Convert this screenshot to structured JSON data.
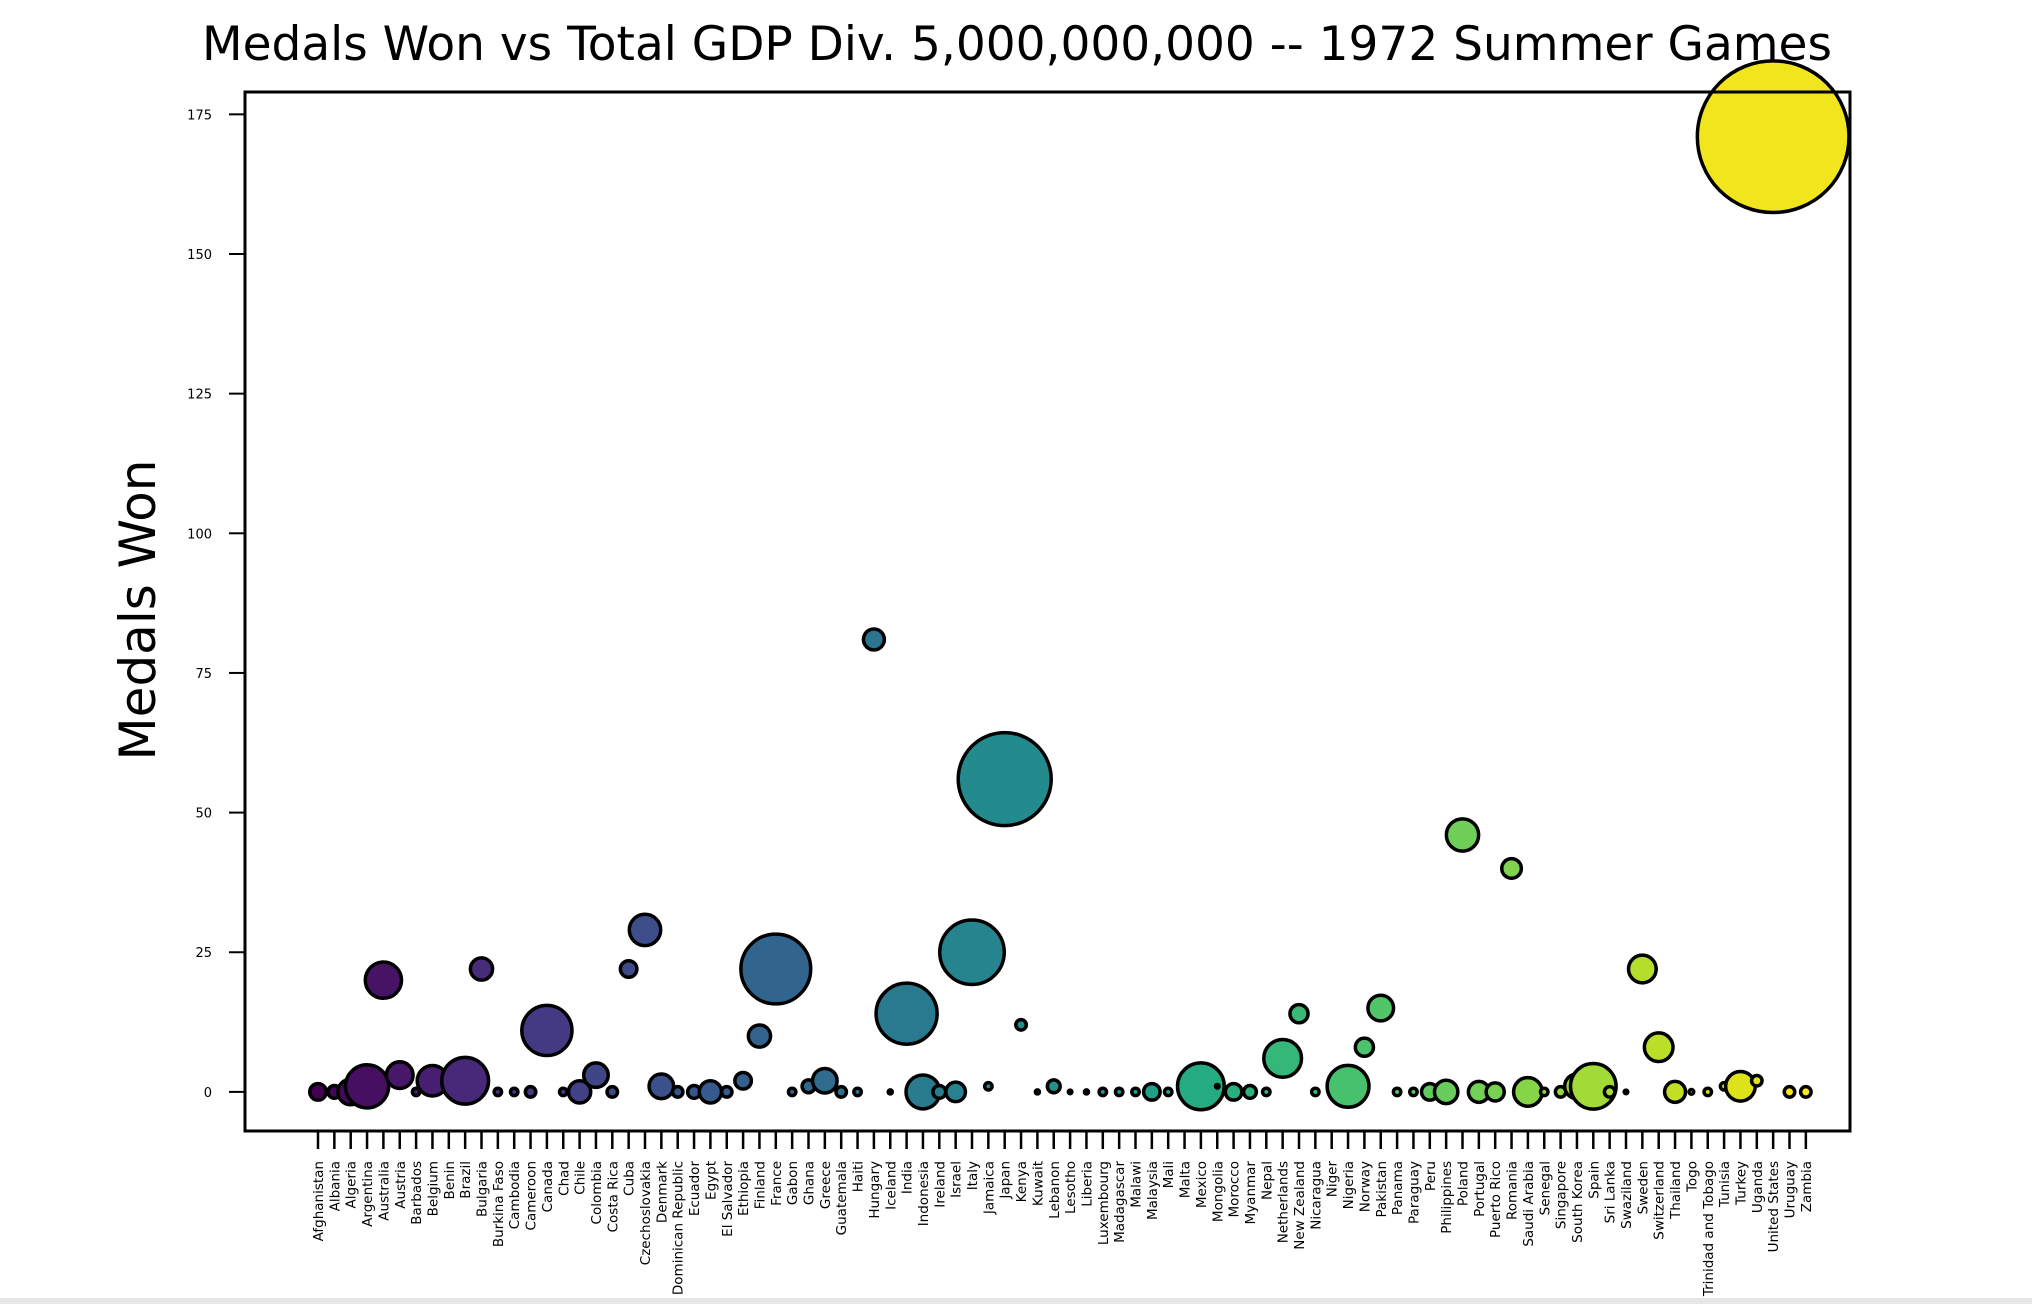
{
  "chart_data": {
    "type": "scatter",
    "title": "Medals Won vs Total GDP Div. 5,000,000,000 -- 1972 Summer Games",
    "xlabel": "",
    "ylabel": "Medals Won",
    "ylim": [
      -7,
      179
    ],
    "yticks": [
      0,
      25,
      50,
      75,
      100,
      125,
      150,
      175
    ],
    "grid": false,
    "legend": "none",
    "colormap": "viridis",
    "points": [
      {
        "country": "Afghanistan",
        "medals": 0,
        "size": 0.5,
        "color": "#440154"
      },
      {
        "country": "Albania",
        "medals": 0,
        "size": 0.3,
        "color": "#450559"
      },
      {
        "country": "Algeria",
        "medals": 0,
        "size": 1.2,
        "color": "#460a5d"
      },
      {
        "country": "Argentina",
        "medals": 1,
        "size": 3.4,
        "color": "#470f62"
      },
      {
        "country": "Australia",
        "medals": 20,
        "size": 2.4,
        "color": "#471365"
      },
      {
        "country": "Austria",
        "medals": 3,
        "size": 1.3,
        "color": "#481769"
      },
      {
        "country": "Barbados",
        "medals": 0,
        "size": 0.1,
        "color": "#481b6d"
      },
      {
        "country": "Belgium",
        "medals": 2,
        "size": 1.7,
        "color": "#481f70"
      },
      {
        "country": "Benin",
        "medals": 0,
        "size": 0.1,
        "color": "#482374"
      },
      {
        "country": "Brazil",
        "medals": 2,
        "size": 4.0,
        "color": "#482878"
      },
      {
        "country": "Bulgaria",
        "medals": 22,
        "size": 0.9,
        "color": "#472c7a"
      },
      {
        "country": "Burkina Faso",
        "medals": 0,
        "size": 0.1,
        "color": "#472f7d"
      },
      {
        "country": "Cambodia",
        "medals": 0,
        "size": 0.1,
        "color": "#46327e"
      },
      {
        "country": "Cameroon",
        "medals": 0,
        "size": 0.2,
        "color": "#453781"
      },
      {
        "country": "Canada",
        "medals": 11,
        "size": 4.6,
        "color": "#443a83"
      },
      {
        "country": "Chad",
        "medals": 0,
        "size": 0.1,
        "color": "#433e85"
      },
      {
        "country": "Chile",
        "medals": 0,
        "size": 0.9,
        "color": "#424086"
      },
      {
        "country": "Colombia",
        "medals": 3,
        "size": 1.1,
        "color": "#404588"
      },
      {
        "country": "Costa Rica",
        "medals": 0,
        "size": 0.2,
        "color": "#3f4889"
      },
      {
        "country": "Cuba",
        "medals": 22,
        "size": 0.5,
        "color": "#3e4989"
      },
      {
        "country": "Czechoslovakia",
        "medals": 29,
        "size": 1.8,
        "color": "#3d4e8a"
      },
      {
        "country": "Denmark",
        "medals": 1,
        "size": 1.1,
        "color": "#3b518b"
      },
      {
        "country": "Dominican Republic",
        "medals": 0,
        "size": 0.2,
        "color": "#3a548c"
      },
      {
        "country": "Ecuador",
        "medals": 0,
        "size": 0.3,
        "color": "#39568c"
      },
      {
        "country": "Egypt",
        "medals": 0,
        "size": 0.9,
        "color": "#375a8c"
      },
      {
        "country": "El Salvador",
        "medals": 0,
        "size": 0.2,
        "color": "#365d8d"
      },
      {
        "country": "Ethiopia",
        "medals": 2,
        "size": 0.5,
        "color": "#355f8d"
      },
      {
        "country": "Finland",
        "medals": 10,
        "size": 0.9,
        "color": "#33638d"
      },
      {
        "country": "France",
        "medals": 22,
        "size": 8.9,
        "color": "#32658e"
      },
      {
        "country": "Gabon",
        "medals": 0,
        "size": 0.1,
        "color": "#31688e"
      },
      {
        "country": "Ghana",
        "medals": 1,
        "size": 0.3,
        "color": "#306a8e"
      },
      {
        "country": "Greece",
        "medals": 2,
        "size": 1.1,
        "color": "#2f6c8e"
      },
      {
        "country": "Guatemala",
        "medals": 0,
        "size": 0.2,
        "color": "#2d708e"
      },
      {
        "country": "Haiti",
        "medals": 0,
        "size": 0.1,
        "color": "#2c728e"
      },
      {
        "country": "Hungary",
        "medals": 81,
        "size": 0.8,
        "color": "#2b758e"
      },
      {
        "country": "Iceland",
        "medals": 0,
        "size": 0.03,
        "color": "#2a788e"
      },
      {
        "country": "India",
        "medals": 14,
        "size": 6.8,
        "color": "#297a8e"
      },
      {
        "country": "Indonesia",
        "medals": 0,
        "size": 2.1,
        "color": "#287c8e"
      },
      {
        "country": "Ireland",
        "medals": 0,
        "size": 0.3,
        "color": "#277f8e"
      },
      {
        "country": "Israel",
        "medals": 0,
        "size": 0.7,
        "color": "#26828e"
      },
      {
        "country": "Italy",
        "medals": 25,
        "size": 7.6,
        "color": "#25848e"
      },
      {
        "country": "Jamaica",
        "medals": 1,
        "size": 0.1,
        "color": "#24878e"
      },
      {
        "country": "Japan",
        "medals": 56,
        "size": 15.8,
        "color": "#238a8d"
      },
      {
        "country": "Kenya",
        "medals": 12,
        "size": 0.2,
        "color": "#228d8d"
      },
      {
        "country": "Kuwait",
        "medals": 0,
        "size": 0.03,
        "color": "#21908d"
      },
      {
        "country": "Lebanon",
        "medals": 1,
        "size": 0.3,
        "color": "#21918c"
      },
      {
        "country": "Lesotho",
        "medals": 0,
        "size": 0.02,
        "color": "#20938c"
      },
      {
        "country": "Liberia",
        "medals": 0,
        "size": 0.03,
        "color": "#1f968b"
      },
      {
        "country": "Luxembourg",
        "medals": 0,
        "size": 0.1,
        "color": "#1f998a"
      },
      {
        "country": "Madagascar",
        "medals": 0,
        "size": 0.1,
        "color": "#1f9c89"
      },
      {
        "country": "Malawi",
        "medals": 0,
        "size": 0.1,
        "color": "#1f9e89"
      },
      {
        "country": "Malaysia",
        "medals": 0,
        "size": 0.5,
        "color": "#1fa188"
      },
      {
        "country": "Mali",
        "medals": 0,
        "size": 0.1,
        "color": "#21a685"
      },
      {
        "country": "Malta",
        "medals": 0,
        "size": 0.01,
        "color": "#22a884"
      },
      {
        "country": "Mexico",
        "medals": 1,
        "size": 4.0,
        "color": "#25ab82"
      },
      {
        "country": "Mongolia",
        "medals": 1,
        "size": 0.02,
        "color": "#27ad81"
      },
      {
        "country": "Morocco",
        "medals": 0,
        "size": 0.5,
        "color": "#29af7f"
      },
      {
        "country": "Myanmar",
        "medals": 0,
        "size": 0.3,
        "color": "#2db27d"
      },
      {
        "country": "Nepal",
        "medals": 0,
        "size": 0.1,
        "color": "#31b57b"
      },
      {
        "country": "Netherlands",
        "medals": 6,
        "size": 2.6,
        "color": "#35b779"
      },
      {
        "country": "New Zealand",
        "medals": 14,
        "size": 0.6,
        "color": "#39b977"
      },
      {
        "country": "Nicaragua",
        "medals": 0,
        "size": 0.1,
        "color": "#3dbc74"
      },
      {
        "country": "Niger",
        "medals": 0,
        "size": 0.02,
        "color": "#42be71"
      },
      {
        "country": "Nigeria",
        "medals": 1,
        "size": 3.2,
        "color": "#48c16e"
      },
      {
        "country": "Norway",
        "medals": 8,
        "size": 0.6,
        "color": "#4cc26c"
      },
      {
        "country": "Pakistan",
        "medals": 15,
        "size": 1.2,
        "color": "#52c569"
      },
      {
        "country": "Panama",
        "medals": 0,
        "size": 0.1,
        "color": "#56c667"
      },
      {
        "country": "Paraguay",
        "medals": 0,
        "size": 0.1,
        "color": "#5cc863"
      },
      {
        "country": "Peru",
        "medals": 0,
        "size": 0.5,
        "color": "#62cb5f"
      },
      {
        "country": "Philippines",
        "medals": 0,
        "size": 1.0,
        "color": "#67cc5c"
      },
      {
        "country": "Poland",
        "medals": 46,
        "size": 1.9,
        "color": "#6ece58"
      },
      {
        "country": "Portugal",
        "medals": 0,
        "size": 0.8,
        "color": "#73d056"
      },
      {
        "country": "Puerto Rico",
        "medals": 0,
        "size": 0.6,
        "color": "#7ad151"
      },
      {
        "country": "Romania",
        "medals": 40,
        "size": 0.7,
        "color": "#80d34e"
      },
      {
        "country": "Saudi Arabia",
        "medals": 0,
        "size": 1.5,
        "color": "#86d549"
      },
      {
        "country": "Senegal",
        "medals": 0,
        "size": 0.1,
        "color": "#8cd646"
      },
      {
        "country": "Singapore",
        "medals": 0,
        "size": 0.2,
        "color": "#93d741"
      },
      {
        "country": "South Korea",
        "medals": 1,
        "size": 1.1,
        "color": "#99d83d"
      },
      {
        "country": "Spain",
        "medals": 1,
        "size": 3.8,
        "color": "#a2da37"
      },
      {
        "country": "Sri Lanka",
        "medals": 0,
        "size": 0.2,
        "color": "#a8db34"
      },
      {
        "country": "Swaziland",
        "medals": 0,
        "size": 0.02,
        "color": "#addc30"
      },
      {
        "country": "Sweden",
        "medals": 22,
        "size": 1.4,
        "color": "#b5de2b"
      },
      {
        "country": "Switzerland",
        "medals": 8,
        "size": 1.5,
        "color": "#bbdf27"
      },
      {
        "country": "Thailand",
        "medals": 0,
        "size": 0.8,
        "color": "#c2df23"
      },
      {
        "country": "Togo",
        "medals": 0,
        "size": 0.04,
        "color": "#c8e020"
      },
      {
        "country": "Trinidad and Tobago",
        "medals": 0,
        "size": 0.1,
        "color": "#d0e11c"
      },
      {
        "country": "Tunisia",
        "medals": 1,
        "size": 0.1,
        "color": "#d5e21a"
      },
      {
        "country": "Turkey",
        "medals": 1,
        "size": 1.6,
        "color": "#dde318"
      },
      {
        "country": "Uganda",
        "medals": 2,
        "size": 0.2,
        "color": "#e2e418"
      },
      {
        "country": "United States",
        "medals": 171,
        "size": 42.0,
        "color": "#f1e51d"
      },
      {
        "country": "Uruguay",
        "medals": 0,
        "size": 0.2,
        "color": "#f5e61f"
      },
      {
        "country": "Zambia",
        "medals": 0,
        "size": 0.2,
        "color": "#fde725"
      }
    ]
  }
}
